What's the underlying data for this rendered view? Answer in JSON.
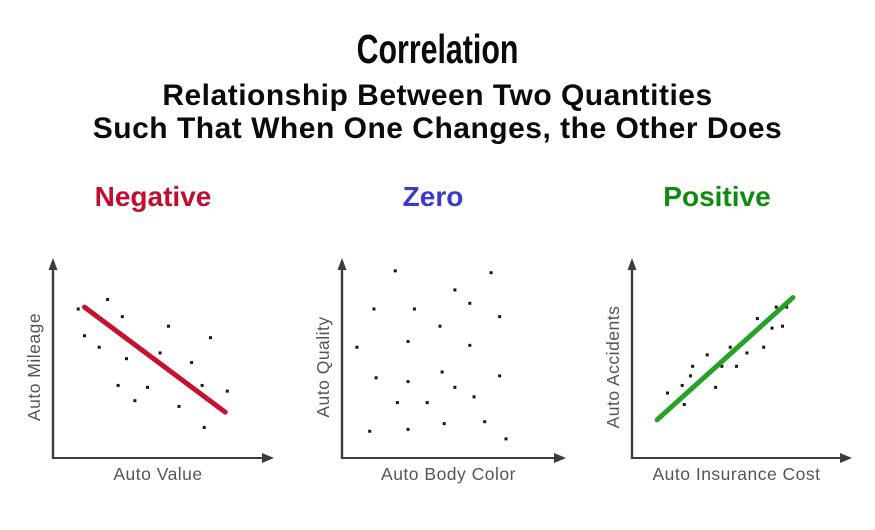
{
  "page": {
    "background": "#ffffff"
  },
  "header": {
    "title": "Correlation",
    "subtitle_line1": "Relationship Between Two Quantities",
    "subtitle_line2": "Such That When One Changes, the Other Does",
    "text_color": "#0b0b0b"
  },
  "colors": {
    "axis_line": "#3c3c3c",
    "axis_text": "#555555",
    "dot": "#151515",
    "negative_accent": "#c00d30",
    "negative_line": "#c51230",
    "zero_accent": "#3a3acd",
    "positive_accent": "#0e8c0e",
    "positive_line": "#27a127"
  },
  "chart_data": [
    {
      "type": "scatter",
      "correlation": "negative",
      "title": "Negative",
      "title_color": "#c00d30",
      "xlabel": "Auto Value",
      "ylabel": "Auto Mileage",
      "x_range": [
        0,
        1
      ],
      "y_range": [
        0,
        1
      ],
      "ticks": "none",
      "grid": false,
      "legend": "none",
      "points": [
        [
          0.26,
          0.83
        ],
        [
          0.12,
          0.78
        ],
        [
          0.33,
          0.74
        ],
        [
          0.55,
          0.69
        ],
        [
          0.75,
          0.63
        ],
        [
          0.15,
          0.64
        ],
        [
          0.22,
          0.58
        ],
        [
          0.35,
          0.52
        ],
        [
          0.51,
          0.55
        ],
        [
          0.66,
          0.5
        ],
        [
          0.31,
          0.38
        ],
        [
          0.45,
          0.37
        ],
        [
          0.71,
          0.38
        ],
        [
          0.83,
          0.35
        ],
        [
          0.39,
          0.3
        ],
        [
          0.6,
          0.27
        ],
        [
          0.72,
          0.16
        ]
      ],
      "trend_line": {
        "from": [
          0.15,
          0.79
        ],
        "to": [
          0.82,
          0.24
        ],
        "color": "#c51230",
        "width": 5
      }
    },
    {
      "type": "scatter",
      "correlation": "zero",
      "title": "Zero",
      "title_color": "#3a3acd",
      "xlabel": "Auto Body Color",
      "ylabel": "Auto Quality",
      "x_range": [
        0,
        1
      ],
      "y_range": [
        0,
        1
      ],
      "ticks": "none",
      "grid": false,
      "legend": "none",
      "points": [
        [
          0.25,
          0.98
        ],
        [
          0.7,
          0.97
        ],
        [
          0.53,
          0.88
        ],
        [
          0.6,
          0.81
        ],
        [
          0.34,
          0.78
        ],
        [
          0.15,
          0.78
        ],
        [
          0.74,
          0.74
        ],
        [
          0.46,
          0.69
        ],
        [
          0.31,
          0.61
        ],
        [
          0.07,
          0.58
        ],
        [
          0.6,
          0.59
        ],
        [
          0.47,
          0.45
        ],
        [
          0.16,
          0.42
        ],
        [
          0.74,
          0.43
        ],
        [
          0.31,
          0.4
        ],
        [
          0.53,
          0.37
        ],
        [
          0.62,
          0.32
        ],
        [
          0.26,
          0.29
        ],
        [
          0.4,
          0.29
        ],
        [
          0.67,
          0.19
        ],
        [
          0.48,
          0.18
        ],
        [
          0.13,
          0.14
        ],
        [
          0.31,
          0.15
        ],
        [
          0.77,
          0.1
        ]
      ],
      "trend_line": null
    },
    {
      "type": "scatter",
      "correlation": "positive",
      "title": "Positive",
      "title_color": "#0e8c0e",
      "xlabel": "Auto Insurance Cost",
      "ylabel": "Auto Accidents",
      "x_range": [
        0,
        1
      ],
      "y_range": [
        0,
        1
      ],
      "ticks": "none",
      "grid": false,
      "legend": "none",
      "points": [
        [
          0.6,
          0.73
        ],
        [
          0.69,
          0.79
        ],
        [
          0.74,
          0.79
        ],
        [
          0.67,
          0.68
        ],
        [
          0.72,
          0.69
        ],
        [
          0.47,
          0.58
        ],
        [
          0.63,
          0.58
        ],
        [
          0.36,
          0.54
        ],
        [
          0.55,
          0.55
        ],
        [
          0.29,
          0.48
        ],
        [
          0.43,
          0.48
        ],
        [
          0.5,
          0.48
        ],
        [
          0.28,
          0.43
        ],
        [
          0.4,
          0.37
        ],
        [
          0.24,
          0.38
        ],
        [
          0.17,
          0.34
        ],
        [
          0.25,
          0.28
        ]
      ],
      "trend_line": {
        "from": [
          0.12,
          0.2
        ],
        "to": [
          0.77,
          0.84
        ],
        "color": "#27a127",
        "width": 5
      }
    }
  ]
}
